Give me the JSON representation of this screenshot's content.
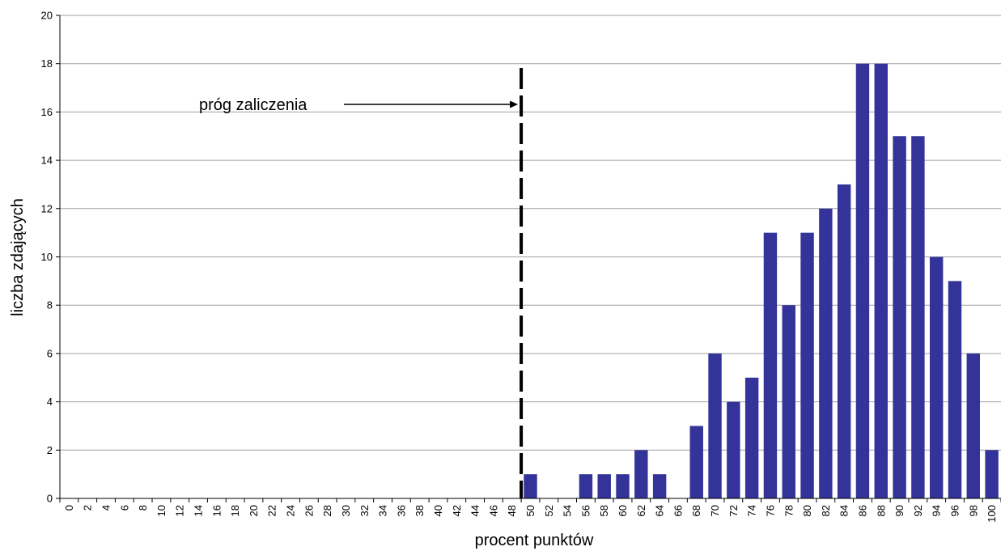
{
  "chart_data": {
    "type": "bar",
    "x": [
      0,
      2,
      4,
      6,
      8,
      10,
      12,
      14,
      16,
      18,
      20,
      22,
      24,
      26,
      28,
      30,
      32,
      34,
      36,
      38,
      40,
      42,
      44,
      46,
      48,
      50,
      52,
      54,
      56,
      58,
      60,
      62,
      64,
      66,
      68,
      70,
      72,
      74,
      76,
      78,
      80,
      82,
      84,
      86,
      88,
      90,
      92,
      94,
      96,
      98,
      100
    ],
    "values": [
      0,
      0,
      0,
      0,
      0,
      0,
      0,
      0,
      0,
      0,
      0,
      0,
      0,
      0,
      0,
      0,
      0,
      0,
      0,
      0,
      0,
      0,
      0,
      0,
      0,
      1,
      0,
      0,
      1,
      1,
      1,
      2,
      1,
      0,
      3,
      6,
      4,
      5,
      11,
      8,
      11,
      12,
      13,
      18,
      18,
      15,
      15,
      10,
      9,
      6,
      2
    ],
    "xlabel": "procent punktów",
    "ylabel": "liczba zdających",
    "ylim": [
      0,
      20
    ],
    "yticks": [
      0,
      2,
      4,
      6,
      8,
      10,
      12,
      14,
      16,
      18,
      20
    ],
    "grid": true,
    "bar_color": "#333399",
    "annotation": {
      "text": "próg zaliczenia",
      "threshold_x": 49
    }
  }
}
